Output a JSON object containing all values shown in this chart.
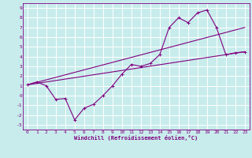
{
  "xlabel": "Windchill (Refroidissement éolien,°C)",
  "bg_color": "#c8ecec",
  "line_color": "#800080",
  "grid_color": "#ffffff",
  "xlim": [
    -0.5,
    23.5
  ],
  "ylim": [
    -3.5,
    9.5
  ],
  "xticks": [
    0,
    1,
    2,
    3,
    4,
    5,
    6,
    7,
    8,
    9,
    10,
    11,
    12,
    13,
    14,
    15,
    16,
    17,
    18,
    19,
    20,
    21,
    22,
    23
  ],
  "yticks": [
    -3,
    -2,
    -1,
    0,
    1,
    2,
    3,
    4,
    5,
    6,
    7,
    8,
    9
  ],
  "line1_x": [
    0,
    1,
    2,
    3,
    4,
    5,
    6,
    7,
    8,
    9,
    10,
    11,
    12,
    13,
    14,
    15,
    16,
    17,
    18,
    19,
    20,
    21,
    22,
    23
  ],
  "line1_y": [
    1.1,
    1.4,
    1.0,
    -0.4,
    -0.3,
    -2.5,
    -1.3,
    -0.9,
    0.0,
    1.0,
    2.2,
    3.2,
    3.0,
    3.3,
    4.2,
    7.0,
    8.0,
    7.5,
    8.5,
    8.8,
    7.0,
    4.2,
    4.4,
    4.5
  ],
  "line2_x": [
    0,
    23
  ],
  "line2_y": [
    1.1,
    7.0
  ],
  "line3_x": [
    0,
    23
  ],
  "line3_y": [
    1.1,
    4.5
  ]
}
